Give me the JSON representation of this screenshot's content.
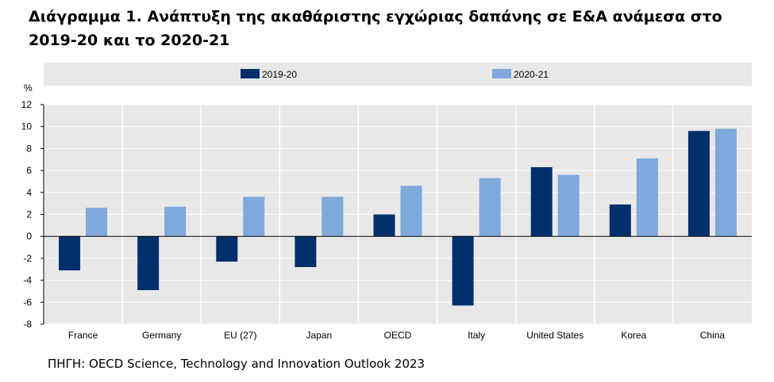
{
  "title": "Διάγραμμα 1. Ανάπτυξη της ακαθάριστης εγχώριας δαπάνης σε Ε&Α ανάμεσα στο 2019-20 και το 2020-21",
  "source": "ΠΗΓΗ: OECD Science, Technology and Innovation Outlook 2023",
  "chart_data": {
    "type": "bar",
    "ylabel": "%",
    "ylim": [
      -8,
      12
    ],
    "yticks": [
      12,
      10,
      8,
      6,
      4,
      2,
      0,
      -2,
      -4,
      -6,
      -8
    ],
    "ytick_labels": [
      "12",
      "10",
      "8",
      "6",
      "4",
      "2",
      "0",
      "-2",
      "-4",
      "-6",
      "-8"
    ],
    "grid": true,
    "legend_position": "top",
    "categories": [
      "France",
      "Germany",
      "EU (27)",
      "Japan",
      "OECD",
      "Italy",
      "United States",
      "Korea",
      "China"
    ],
    "series": [
      {
        "name": "2019-20",
        "color": "#002f6c",
        "values": [
          -3.1,
          -4.9,
          -2.3,
          -2.8,
          2.0,
          -6.3,
          6.3,
          2.9,
          9.6
        ]
      },
      {
        "name": "2020-21",
        "color": "#7fa8db",
        "values": [
          2.6,
          2.7,
          3.6,
          3.6,
          4.6,
          5.3,
          5.6,
          7.1,
          9.8
        ]
      }
    ]
  }
}
